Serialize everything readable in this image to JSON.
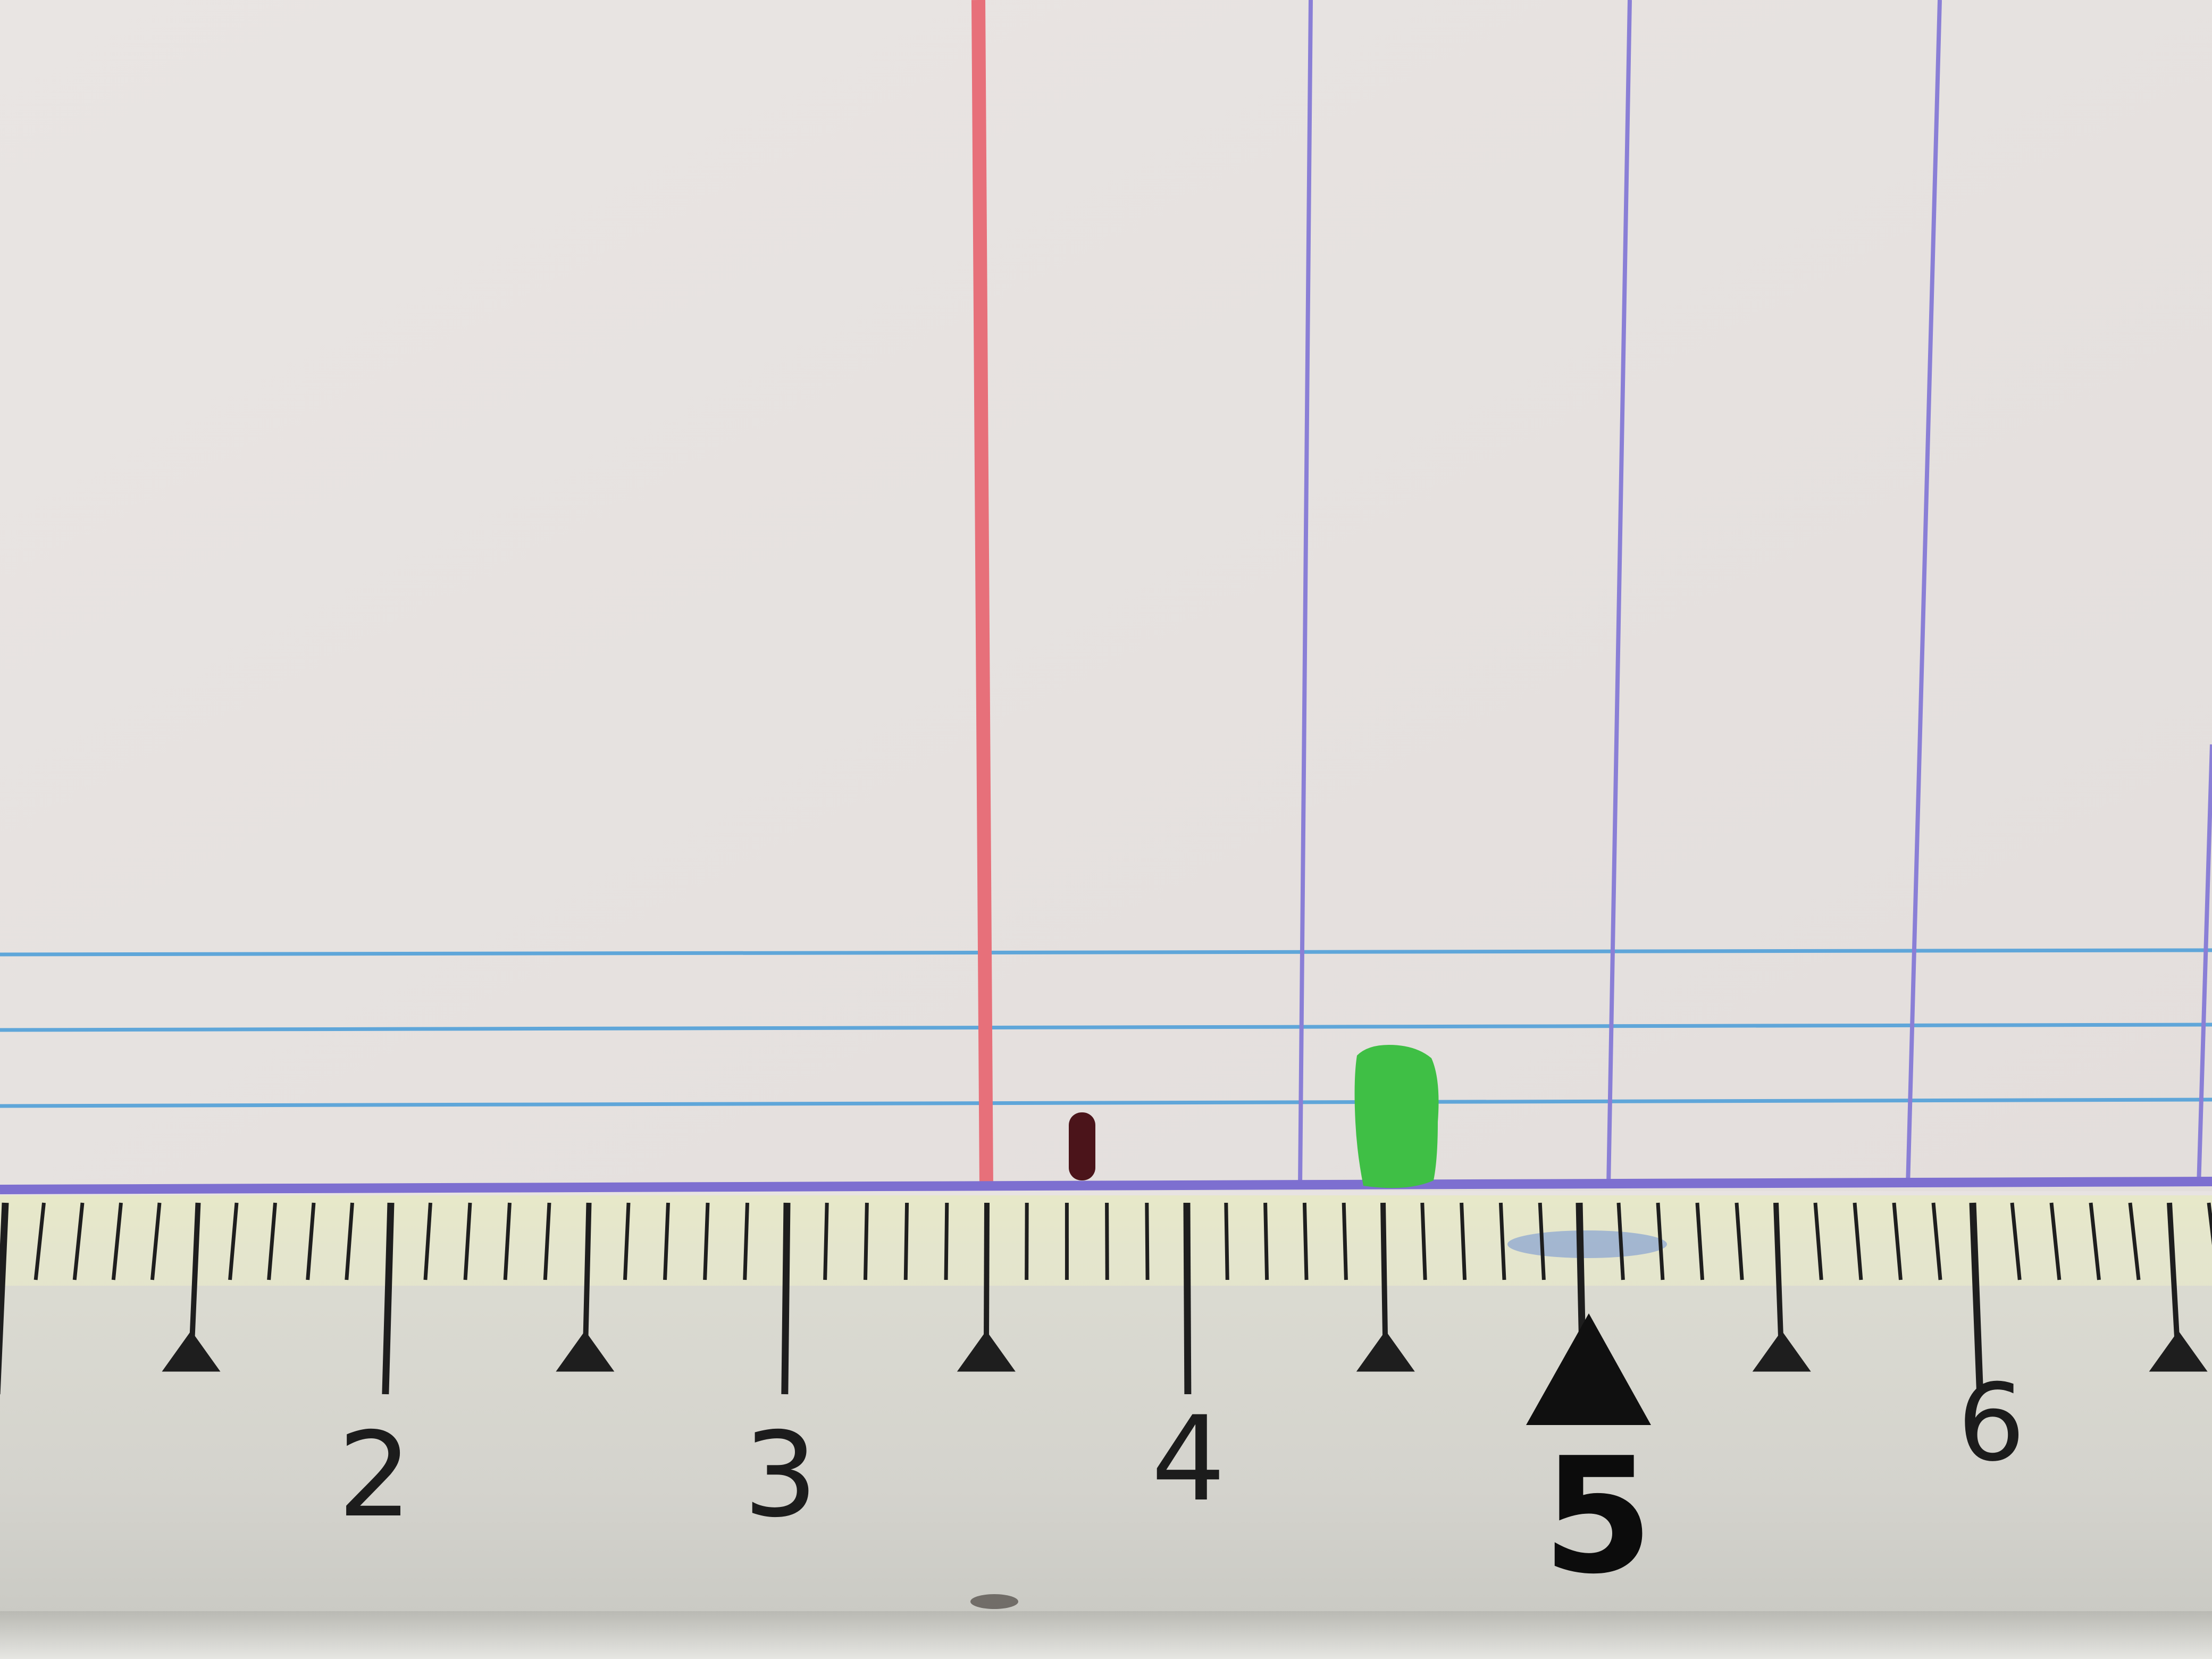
{
  "scene": {
    "description_free": true,
    "paper_color": "#e8e3e2",
    "margin_line_color": "#e7707a",
    "column_line_color": "#8a7fd6",
    "ruled_line_color": "#5fa6d9",
    "ruler_color": "#d9d8d0",
    "ruler_edge_color": "#f0f2cf"
  },
  "ruler": {
    "labels": [
      "2",
      "3",
      "4",
      "5",
      "6"
    ],
    "emphasized_label": "5"
  },
  "marks": {
    "dark_mark_color": "#4b141a",
    "green_mark_color": "#3fbf45"
  }
}
